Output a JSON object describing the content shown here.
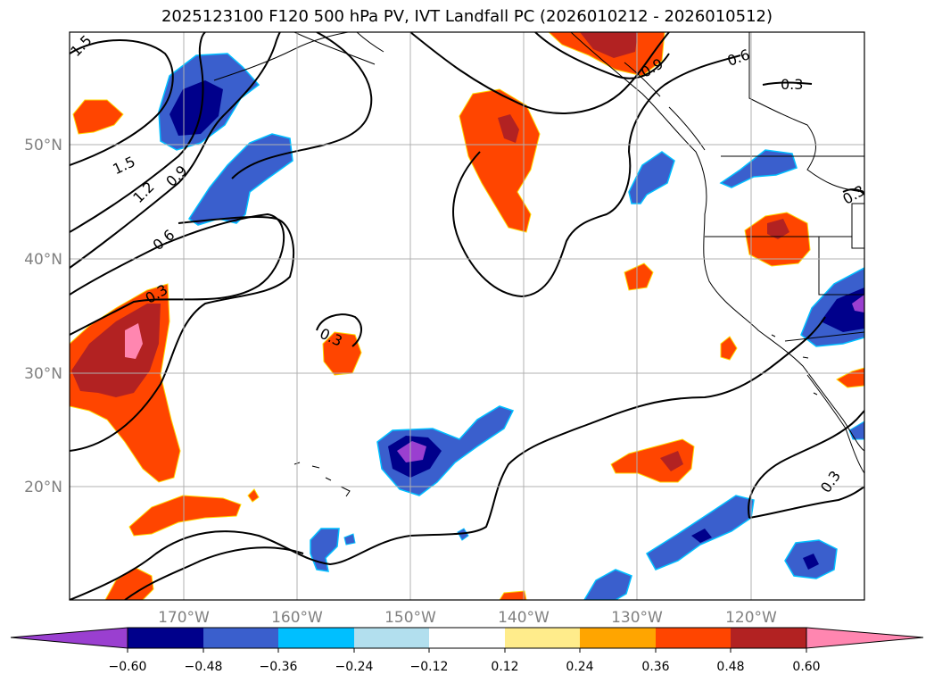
{
  "title": "2025123100 F120 500 hPa PV, IVT Landfall PC (2026010212 - 2026010512)",
  "latitude_labels": [
    "50°N",
    "40°N",
    "30°N",
    "20°N"
  ],
  "longitude_labels": [
    "170°W",
    "160°W",
    "150°W",
    "140°W",
    "130°W",
    "120°W"
  ],
  "contour_labels": [
    "1.5",
    "1.5",
    "1.2",
    "0.9",
    "0.6",
    "0.3",
    "0.3",
    "0.9",
    "0.6",
    "0.3",
    "0.3",
    "0.3"
  ],
  "colorbar": {
    "tick_labels": [
      "−0.60",
      "−0.48",
      "−0.36",
      "−0.24",
      "−0.12",
      "0.12",
      "0.24",
      "0.36",
      "0.48",
      "0.60"
    ],
    "colors": [
      "#9a3fd0",
      "#00008b",
      "#3a5fcd",
      "#00bfff",
      "#b2dfee",
      "#ffffff",
      "#ffec8b",
      "#ffa500",
      "#ff4500",
      "#b22222",
      "#ff86b0",
      "#ff86b0"
    ]
  }
}
